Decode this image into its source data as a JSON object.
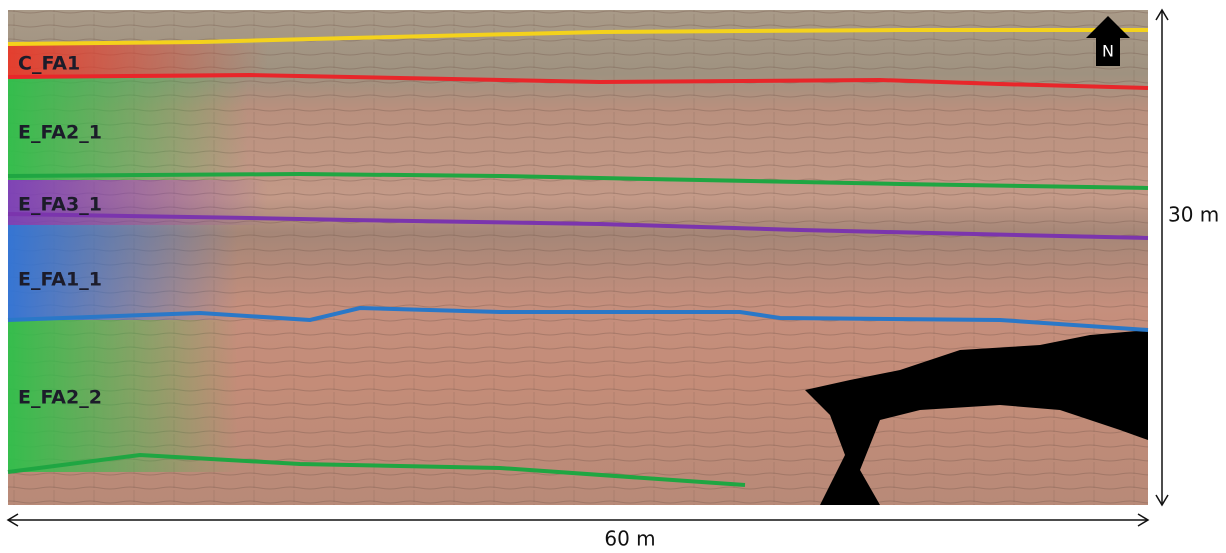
{
  "facies_labels": [
    "C_FA1",
    "E_FA2_1",
    "E_FA3_1",
    "E_FA1_1",
    "E_FA2_2"
  ],
  "north_label": "N",
  "scale": {
    "vertical": "30 m",
    "horizontal": "60 m"
  }
}
